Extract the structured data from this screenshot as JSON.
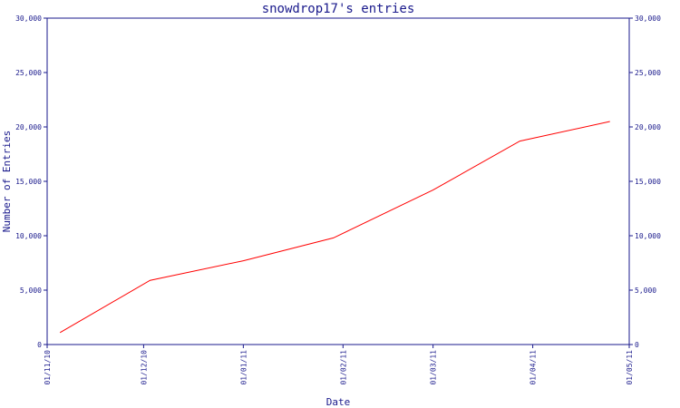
{
  "chart_data": {
    "type": "line",
    "title": "snowdrop17's entries",
    "xlabel": "Date",
    "ylabel": "Number of Entries",
    "x_tick_labels": [
      "01/11/10",
      "01/12/10",
      "01/01/11",
      "01/02/11",
      "01/03/11",
      "01/04/11",
      "01/05/11"
    ],
    "y_tick_labels": [
      "0",
      "5,000",
      "10,000",
      "15,000",
      "20,000",
      "25,000",
      "30,000"
    ],
    "ylim": [
      0,
      30000
    ],
    "xlim": [
      "2010-11-01",
      "2011-05-01"
    ],
    "grid": false,
    "legend": "none",
    "series": [
      {
        "color": "#ff0000",
        "points": [
          {
            "x": "2010-11-05",
            "y": 1100
          },
          {
            "x": "2010-12-03",
            "y": 5900
          },
          {
            "x": "2011-01-01",
            "y": 7700
          },
          {
            "x": "2011-01-29",
            "y": 9800
          },
          {
            "x": "2011-03-01",
            "y": 14200
          },
          {
            "x": "2011-03-28",
            "y": 18700
          },
          {
            "x": "2011-04-25",
            "y": 20500
          }
        ]
      }
    ]
  },
  "colors": {
    "axis": "#1a1a8c",
    "series_line": "#ff0000",
    "background": "#ffffff"
  }
}
